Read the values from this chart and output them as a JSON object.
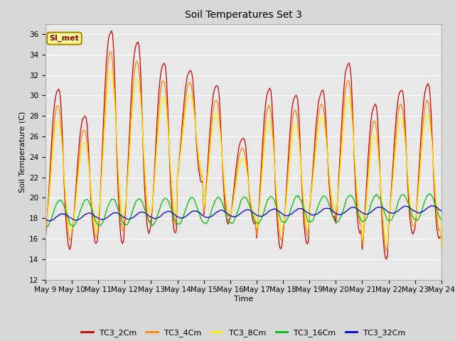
{
  "title": "Soil Temperatures Set 3",
  "xlabel": "Time",
  "ylabel": "Soil Temperature (C)",
  "ylim": [
    12,
    37
  ],
  "yticks": [
    12,
    14,
    16,
    18,
    20,
    22,
    24,
    26,
    28,
    30,
    32,
    34,
    36
  ],
  "series_colors": {
    "TC3_2Cm": "#cc0000",
    "TC3_4Cm": "#ff8800",
    "TC3_8Cm": "#ffee00",
    "TC3_16Cm": "#00bb00",
    "TC3_32Cm": "#0000cc"
  },
  "plot_bg": "#e8e8e8",
  "fig_bg": "#d8d8d8",
  "annotation_text": "SI_met",
  "annotation_fg": "#880000",
  "annotation_bg": "#ffff99",
  "annotation_border": "#aa8800",
  "grid_color": "#ffffff",
  "day_start": 9,
  "day_end": 24,
  "peaks_2cm": [
    30.0,
    27.5,
    35.5,
    34.5,
    32.5,
    32.0,
    30.5,
    25.5,
    30.0,
    29.5,
    30.0,
    32.5,
    28.5,
    30.0,
    30.5,
    13.5
  ],
  "troughs_2cm": [
    15.0,
    15.5,
    15.5,
    16.5,
    16.5,
    21.5,
    17.5,
    17.5,
    15.0,
    15.5,
    18.0,
    16.5,
    14.0,
    16.5,
    16.0,
    16.0
  ],
  "peak_hour": 14,
  "trough_hour": 4
}
